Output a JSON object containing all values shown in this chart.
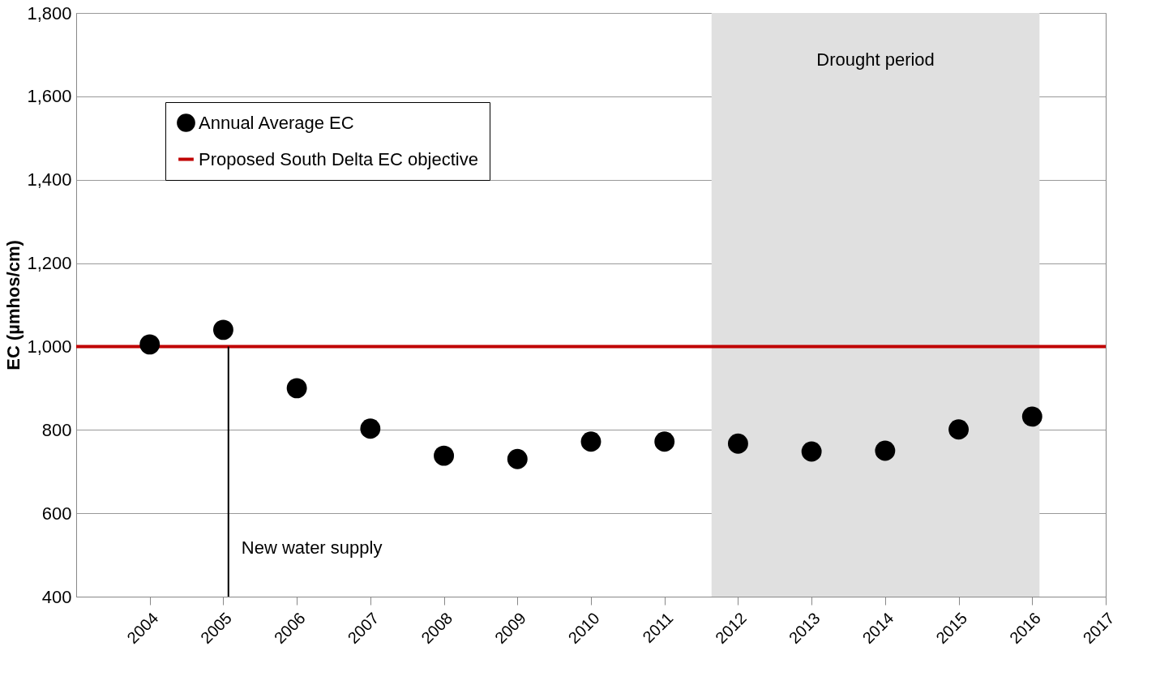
{
  "chart_data": {
    "type": "scatter",
    "ylabel": "EC (µmhos/cm)",
    "x": [
      2004,
      2005,
      2006,
      2007,
      2008,
      2009,
      2010,
      2011,
      2012,
      2013,
      2014,
      2015,
      2016
    ],
    "series": [
      {
        "name": "Annual Average EC",
        "color": "#000000",
        "values": [
          1005,
          1040,
          900,
          803,
          738,
          730,
          772,
          772,
          767,
          748,
          750,
          801,
          832
        ]
      }
    ],
    "xlim": [
      2003,
      2017
    ],
    "xticks": [
      2004,
      2005,
      2006,
      2007,
      2008,
      2009,
      2010,
      2011,
      2012,
      2013,
      2014,
      2015,
      2016,
      2017
    ],
    "ylim": [
      400,
      1800
    ],
    "yticks": [
      400,
      600,
      800,
      {
        "value": 1000,
        "label": "1,000"
      },
      {
        "value": 1200,
        "label": "1,200"
      },
      {
        "value": 1400,
        "label": "1,400"
      },
      {
        "value": 1600,
        "label": "1,600"
      },
      {
        "value": 1800,
        "label": "1,800"
      }
    ],
    "ref_lines": [
      {
        "axis": "y",
        "value": 1000,
        "label": "Proposed South Delta EC objective",
        "color": "#c00000"
      },
      {
        "axis": "x",
        "value": 2005.07,
        "label": "New water supply",
        "color": "#000000"
      }
    ],
    "bands": [
      {
        "axis": "x",
        "from": 2011.64,
        "to": 2016.1,
        "label": "Drought period",
        "color": "#e0e0e0"
      }
    ],
    "grid": "y",
    "legend": "top left",
    "marker": "circle"
  }
}
